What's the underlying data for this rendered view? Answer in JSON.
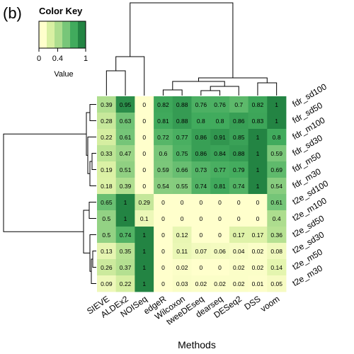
{
  "panel_label": "(b)",
  "color_key": {
    "title": "Color Key",
    "ticks": [
      "0",
      "0.4",
      "1"
    ],
    "label": "Value",
    "swatches": [
      "#ffffcc",
      "#d9f0a3",
      "#addd8e",
      "#78c679",
      "#41ab5d",
      "#238443"
    ]
  },
  "chart_data": {
    "type": "heatmap",
    "xlabel": "Methods",
    "columns": [
      "SIEVE",
      "ALDEx2",
      "NOISeq",
      "edgeR",
      "Wilcoxon",
      "tweeDEseq",
      "dearseq",
      "DESeq2",
      "DSS",
      "voom"
    ],
    "rows": [
      "fdr_sd100",
      "fdr_sd50",
      "fdr_m100",
      "fdr_sd30",
      "fdr_m50",
      "fdr_m30",
      "t2e_sd100",
      "t2e_m100",
      "t2e_sd50",
      "t2e_sd30",
      "t2e_m50",
      "t2e_m30"
    ],
    "values": [
      [
        "0.39",
        "0.95",
        "0",
        "0.82",
        "0.88",
        "0.76",
        "0.76",
        "0.7",
        "0.82",
        "1"
      ],
      [
        "0.28",
        "0.63",
        "0",
        "0.81",
        "0.88",
        "0.8",
        "0.8",
        "0.86",
        "0.83",
        "1"
      ],
      [
        "0.22",
        "0.61",
        "0",
        "0.72",
        "0.77",
        "0.86",
        "0.91",
        "0.85",
        "1",
        "0.8"
      ],
      [
        "0.33",
        "0.47",
        "0",
        "0.6",
        "0.75",
        "0.86",
        "0.84",
        "0.88",
        "1",
        "0.59"
      ],
      [
        "0.19",
        "0.51",
        "0",
        "0.59",
        "0.66",
        "0.73",
        "0.77",
        "0.79",
        "1",
        "0.69"
      ],
      [
        "0.18",
        "0.39",
        "0",
        "0.54",
        "0.55",
        "0.74",
        "0.81",
        "0.74",
        "1",
        "0.54"
      ],
      [
        "0.65",
        "1",
        "0.29",
        "0",
        "0",
        "0",
        "0",
        "0",
        "0",
        "0.61"
      ],
      [
        "0.5",
        "1",
        "0.1",
        "0",
        "0",
        "0",
        "0",
        "0",
        "0",
        "0.4"
      ],
      [
        "0.5",
        "0.74",
        "1",
        "0",
        "0.12",
        "0",
        "0",
        "0.17",
        "0.17",
        "0.36"
      ],
      [
        "0.13",
        "0.35",
        "1",
        "0",
        "0.11",
        "0.07",
        "0.06",
        "0.04",
        "0.02",
        "0.08"
      ],
      [
        "0.26",
        "0.37",
        "1",
        "0",
        "0.02",
        "0",
        "0",
        "0.02",
        "0.02",
        "0.14"
      ],
      [
        "0.09",
        "0.22",
        "1",
        "0",
        "0.03",
        "0.02",
        "0.02",
        "0.02",
        "0.01",
        "0.05"
      ]
    ],
    "value_range": [
      0,
      1
    ],
    "dendrograms": "row and column"
  }
}
